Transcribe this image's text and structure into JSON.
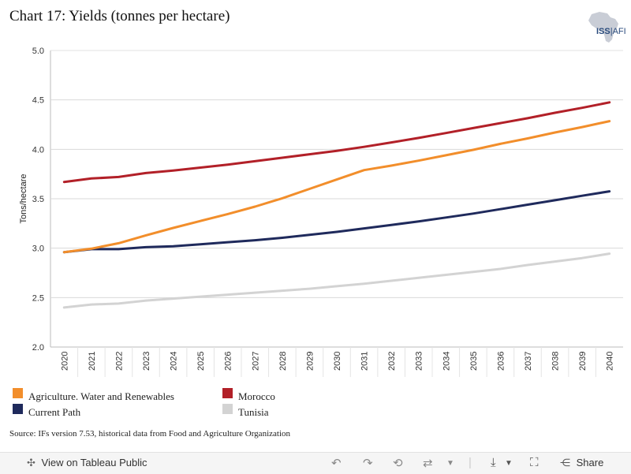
{
  "title": "Chart 17: Yields (tonnes per hectare)",
  "logo": {
    "text_bold": "ISS",
    "text_rest": "AFI"
  },
  "chart_data": {
    "type": "line",
    "title": "Chart 17: Yields (tonnes per hectare)",
    "xlabel": "",
    "ylabel": "Tons/hectare",
    "ylim": [
      2.0,
      5.0
    ],
    "yticks": [
      "2.0",
      "2.5",
      "3.0",
      "3.5",
      "4.0",
      "4.5",
      "5.0"
    ],
    "x": [
      "2020",
      "2021",
      "2022",
      "2023",
      "2024",
      "2025",
      "2026",
      "2027",
      "2028",
      "2029",
      "2030",
      "2031",
      "2032",
      "2033",
      "2034",
      "2035",
      "2036",
      "2037",
      "2038",
      "2039",
      "2040"
    ],
    "series": [
      {
        "name": "Tunisia",
        "color": "#d3d3d3",
        "values": [
          2.4,
          2.43,
          2.44,
          2.47,
          2.49,
          2.51,
          2.53,
          2.55,
          2.57,
          2.59,
          2.615,
          2.64,
          2.67,
          2.7,
          2.73,
          2.76,
          2.79,
          2.83,
          2.865,
          2.9,
          2.945
        ]
      },
      {
        "name": "Current Path",
        "color": "#1f2a5c",
        "values": [
          2.96,
          2.99,
          2.99,
          3.01,
          3.02,
          3.04,
          3.06,
          3.08,
          3.105,
          3.135,
          3.165,
          3.2,
          3.235,
          3.27,
          3.31,
          3.35,
          3.395,
          3.44,
          3.485,
          3.53,
          3.575
        ]
      },
      {
        "name": "Agriculture. Water and Renewables",
        "color": "#f28e2b",
        "values": [
          2.96,
          2.995,
          3.05,
          3.13,
          3.205,
          3.275,
          3.345,
          3.42,
          3.505,
          3.6,
          3.695,
          3.79,
          3.835,
          3.885,
          3.94,
          3.995,
          4.055,
          4.11,
          4.17,
          4.225,
          4.285
        ]
      },
      {
        "name": "Morocco",
        "color": "#b22028",
        "values": [
          3.67,
          3.705,
          3.72,
          3.76,
          3.785,
          3.815,
          3.845,
          3.88,
          3.915,
          3.95,
          3.985,
          4.025,
          4.07,
          4.115,
          4.165,
          4.215,
          4.265,
          4.315,
          4.37,
          4.42,
          4.475
        ]
      }
    ],
    "legend": [
      {
        "name": "Agriculture. Water and Renewables",
        "color": "#f28e2b"
      },
      {
        "name": "Current Path",
        "color": "#1f2a5c"
      },
      {
        "name": "Morocco",
        "color": "#b22028"
      },
      {
        "name": "Tunisia",
        "color": "#d3d3d3"
      }
    ]
  },
  "source": "Source: IFs version 7.53, historical data from Food and Agriculture Organization",
  "toolbar": {
    "view_label": "View on Tableau Public",
    "share_label": "Share"
  }
}
